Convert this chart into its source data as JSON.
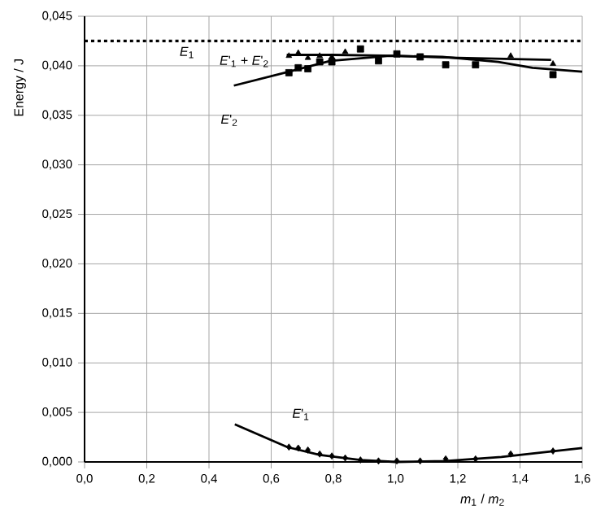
{
  "chart_data": {
    "type": "scatter",
    "xlabel": "*m*$_{1}$ / *m*$_{2}$",
    "ylabel": "Energy / J",
    "xlim": [
      0,
      1.6
    ],
    "ylim": [
      0,
      0.045
    ],
    "xticks": [
      {
        "value": 0,
        "label": "0,0"
      },
      {
        "value": 0.2,
        "label": "0,2"
      },
      {
        "value": 0.4,
        "label": "0,4"
      },
      {
        "value": 0.6,
        "label": "0,6"
      },
      {
        "value": 0.8,
        "label": "0,8"
      },
      {
        "value": 1.0,
        "label": "1,0"
      },
      {
        "value": 1.2,
        "label": "1,2"
      },
      {
        "value": 1.4,
        "label": "1,4"
      },
      {
        "value": 1.6,
        "label": "1,6"
      }
    ],
    "yticks": [
      {
        "value": 0,
        "label": "0,000"
      },
      {
        "value": 0.005,
        "label": "0,005"
      },
      {
        "value": 0.01,
        "label": "0,010"
      },
      {
        "value": 0.015,
        "label": "0,015"
      },
      {
        "value": 0.02,
        "label": "0,020"
      },
      {
        "value": 0.025,
        "label": "0,025"
      },
      {
        "value": 0.03,
        "label": "0,030"
      },
      {
        "value": 0.035,
        "label": "0,035"
      },
      {
        "value": 0.04,
        "label": "0,040"
      },
      {
        "value": 0.045,
        "label": "0,045"
      }
    ],
    "grid": true,
    "series": [
      {
        "marker": "triangle",
        "color": "#000000",
        "x": [
          0.657,
          0.687,
          0.718,
          0.756,
          0.795,
          0.838,
          1.37,
          1.506
        ],
        "values": [
          0.041,
          0.0413,
          0.0408,
          0.041,
          0.0409,
          0.0414,
          0.041,
          0.0402
        ]
      },
      {
        "type": "line",
        "marker": "none",
        "color": "#000000",
        "x": [
          0.65,
          0.8,
          1.0,
          1.2,
          1.5
        ],
        "values": [
          0.0411,
          0.0411,
          0.041,
          0.0408,
          0.0406
        ]
      },
      {
        "marker": "square",
        "color": "#000000",
        "x": [
          0.657,
          0.687,
          0.718,
          0.756,
          0.795,
          0.887,
          0.945,
          1.004,
          1.079,
          1.161,
          1.257,
          1.506
        ],
        "values": [
          0.0393,
          0.0398,
          0.0397,
          0.0404,
          0.0404,
          0.0417,
          0.0405,
          0.0412,
          0.0409,
          0.0401,
          0.0401,
          0.0391
        ]
      },
      {
        "type": "line",
        "marker": "none",
        "color": "#000000",
        "x": [
          0.48,
          0.657,
          0.79,
          0.98,
          1.15,
          1.33,
          1.44,
          1.6
        ],
        "values": [
          0.038,
          0.0394,
          0.0405,
          0.041,
          0.0409,
          0.0404,
          0.0398,
          0.0394
        ]
      },
      {
        "marker": "diamond",
        "color": "#000000",
        "x": [
          0.657,
          0.687,
          0.718,
          0.756,
          0.795,
          0.838,
          0.887,
          0.945,
          1.004,
          1.079,
          1.161,
          1.257,
          1.37,
          1.506
        ],
        "values": [
          0.0015,
          0.0014,
          0.0012,
          0.0008,
          0.0006,
          0.0004,
          0.0002,
          0.0001,
          0.0001,
          0.0001,
          0.0003,
          0.0003,
          0.0008,
          0.0011
        ]
      },
      {
        "type": "line",
        "marker": "none",
        "color": "#000000",
        "x": [
          0.483,
          0.652,
          0.756,
          0.887,
          1.0,
          1.16,
          1.34,
          1.6
        ],
        "values": [
          0.0038,
          0.0015,
          0.0007,
          0.0002,
          0.0,
          0.0001,
          0.0005,
          0.0014
        ]
      }
    ],
    "ref_lines": [
      {
        "axis": "y",
        "value": 0.0425,
        "label": "*E*$_{1}$",
        "line_style": "dotted",
        "color": "#000000"
      }
    ],
    "annotations": [
      "*E*'$_{1}$ + *E*'$_{2}$",
      "*E*'$_{2}$",
      "*E*'$_{1}$"
    ]
  }
}
